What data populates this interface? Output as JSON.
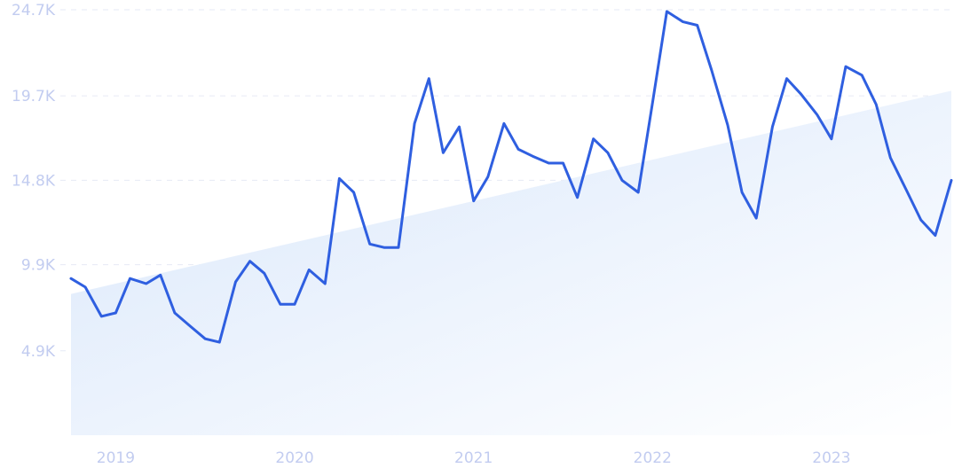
{
  "chart_data": {
    "type": "line",
    "title": "",
    "xlabel": "",
    "ylabel": "",
    "grid": true,
    "legend": "none",
    "ylim": [
      0,
      24700
    ],
    "y_ticks": [
      "4.9K",
      "9.9K",
      "14.8K",
      "19.7K",
      "24.7K"
    ],
    "y_tick_values": [
      4900,
      9900,
      14800,
      19700,
      24700
    ],
    "x_ticks": [
      "2019",
      "2020",
      "2021",
      "2022",
      "2023"
    ],
    "x_tick_values": [
      2019.0,
      2020.0,
      2021.0,
      2022.0,
      2023.0
    ],
    "xlim": [
      2018.75,
      2023.67
    ],
    "colors": {
      "line": "#2f5fe0",
      "trend_top": "#d9e7fb",
      "trend_bottom": "#ffffff",
      "tick": "#c2ccf0",
      "grid": "#e6eaf5"
    },
    "series": [
      {
        "x": [
          2018.75,
          2018.83,
          2018.92,
          2019.0,
          2019.08,
          2019.17,
          2019.25,
          2019.33,
          2019.42,
          2019.5,
          2019.58,
          2019.67,
          2019.75,
          2019.83,
          2019.92,
          2020.0,
          2020.08,
          2020.17,
          2020.25,
          2020.33,
          2020.42,
          2020.5,
          2020.58,
          2020.67,
          2020.75,
          2020.83,
          2020.92,
          2021.0,
          2021.08,
          2021.17,
          2021.25,
          2021.33,
          2021.42,
          2021.5,
          2021.58,
          2021.67,
          2021.75,
          2021.83,
          2021.92,
          2022.0,
          2022.08,
          2022.17,
          2022.25,
          2022.33,
          2022.42,
          2022.5,
          2022.58,
          2022.67,
          2022.75,
          2022.83,
          2022.92,
          2023.0,
          2023.08,
          2023.17,
          2023.25,
          2023.33,
          2023.42,
          2023.5,
          2023.58,
          2023.67
        ],
        "values": [
          9100,
          8600,
          6900,
          7100,
          9100,
          8800,
          9300,
          7100,
          6300,
          5600,
          5400,
          8900,
          10100,
          9400,
          7600,
          7600,
          9600,
          8800,
          14900,
          14100,
          11100,
          10900,
          10900,
          18100,
          20700,
          16400,
          17900,
          13600,
          15000,
          18100,
          16600,
          16200,
          15800,
          15800,
          13800,
          17200,
          16400,
          14800,
          14100,
          19300,
          24600,
          24000,
          23800,
          21200,
          18000,
          14100,
          12600,
          17900,
          20700,
          19800,
          18600,
          17200,
          21400,
          20900,
          19200,
          16100,
          14200,
          12500,
          11600,
          14800
        ]
      }
    ],
    "trend": {
      "x": [
        2018.75,
        2023.67
      ],
      "y": [
        8200,
        20000
      ]
    }
  }
}
